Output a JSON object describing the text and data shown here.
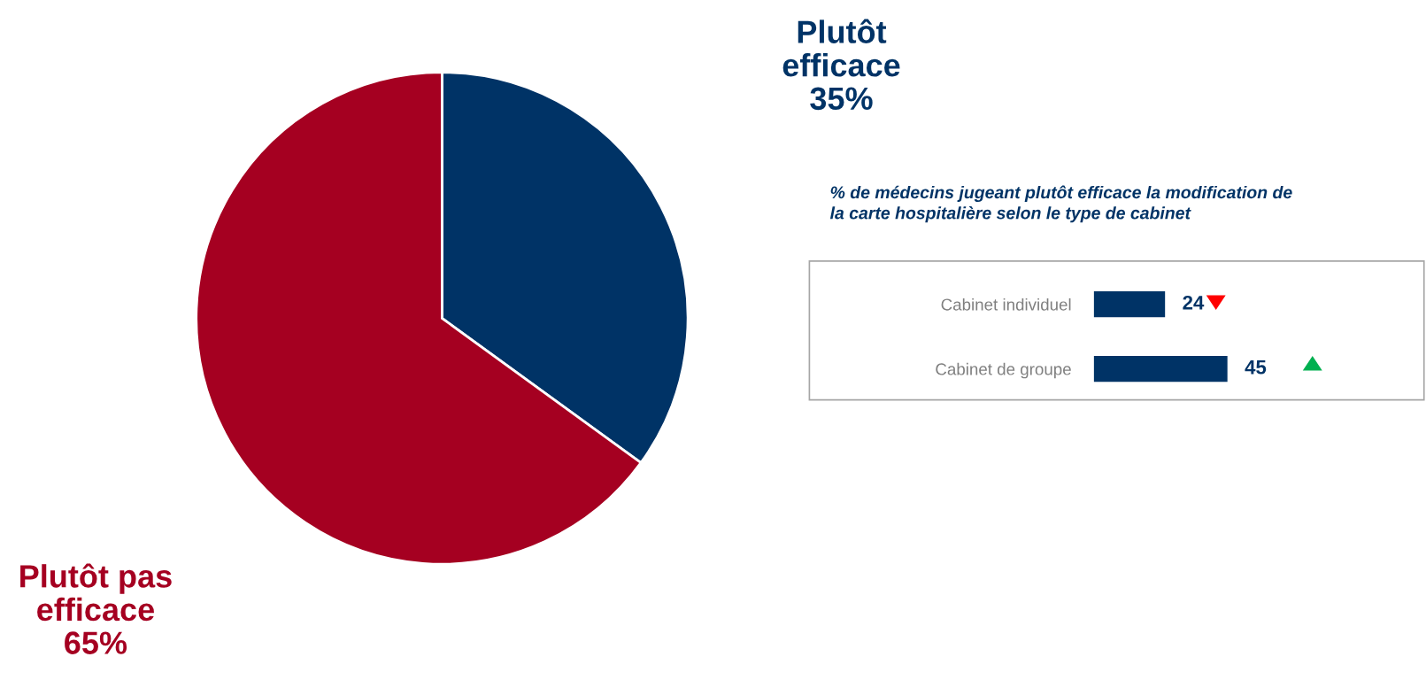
{
  "chart_data": [
    {
      "type": "pie",
      "categories": [
        "Plutôt\nefficace",
        "Plutôt pas\nefficace"
      ],
      "values": [
        35,
        65
      ],
      "colors": [
        "#003366",
        "#a50021"
      ],
      "value_labels": [
        "35%",
        "65%"
      ]
    },
    {
      "type": "bar",
      "orientation": "horizontal",
      "title": "% de médecins jugeant plutôt efficace la modification de\nla carte hospitalière selon le type de cabinet",
      "categories": [
        "Cabinet individuel",
        "Cabinet de groupe"
      ],
      "values": [
        24,
        45
      ],
      "color": "#003366",
      "data_labels": true
    }
  ]
}
